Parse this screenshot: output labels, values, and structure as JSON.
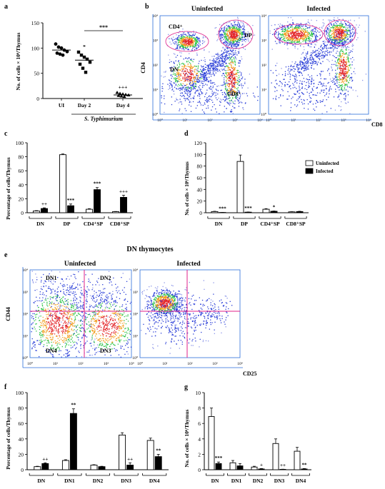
{
  "panels": {
    "a": {
      "letter": "a"
    },
    "b": {
      "letter": "b"
    },
    "c": {
      "letter": "c"
    },
    "d": {
      "letter": "d"
    },
    "e": {
      "letter": "e"
    },
    "f": {
      "letter": "f"
    },
    "g": {
      "letter": "g"
    }
  },
  "chart_data": [
    {
      "id": "a",
      "type": "scatter",
      "ylabel": "No. of cells × 10⁶/Thymus",
      "categories": [
        "UI",
        "Day 2",
        "Day 4"
      ],
      "group_label": "S. Typhimurium",
      "ylim": [
        0,
        150
      ],
      "yticks": [
        0,
        50,
        100,
        150
      ],
      "points": [
        [
          108,
          102,
          100,
          96,
          93,
          90,
          88,
          86
        ],
        [
          92,
          86,
          82,
          78,
          72,
          68,
          60,
          52
        ],
        [
          12,
          10,
          9,
          8,
          7,
          6,
          5,
          4
        ]
      ],
      "means": [
        96,
        76,
        7
      ],
      "sig_labels": [
        "",
        "*",
        "+++"
      ],
      "bracket_label": "***"
    },
    {
      "id": "b",
      "type": "density",
      "panel_titles": [
        "Uninfected",
        "Infected"
      ],
      "xlabel": "CD8",
      "ylabel": "CD4",
      "gate_labels": [
        "CD4⁺",
        "DP",
        "DN",
        "CD8⁺"
      ],
      "x_ticks": [
        "10⁰",
        "10¹",
        "10²",
        "10³",
        "10⁴"
      ],
      "y_ticks": [
        "10⁰",
        "10¹",
        "10²",
        "10³",
        "10⁴"
      ]
    },
    {
      "id": "c",
      "type": "bar",
      "ylabel": "Percentage of cells/Thymus",
      "categories": [
        "DN",
        "DP",
        "CD4⁺SP",
        "CD8⁺SP"
      ],
      "ylim": [
        0,
        100
      ],
      "yticks": [
        0,
        20,
        40,
        60,
        80,
        100
      ],
      "series": [
        {
          "values": [
            2.5,
            83,
            5,
            1.5
          ],
          "errors": [
            0.5,
            1,
            0.8,
            0.3
          ]
        },
        {
          "values": [
            6,
            10,
            33,
            22
          ],
          "errors": [
            1,
            2.5,
            3,
            3
          ]
        }
      ],
      "sig_labels": [
        "++",
        "***",
        "***",
        "+++"
      ]
    },
    {
      "id": "d",
      "type": "bar",
      "ylabel": "No. of cells × 10⁶/Thymus",
      "categories": [
        "DN",
        "DP",
        "CD4⁺SP",
        "CD8⁺SP"
      ],
      "ylim": [
        0,
        120
      ],
      "yticks": [
        0,
        20,
        40,
        60,
        80,
        100,
        120
      ],
      "series": [
        {
          "name": "Uninfected",
          "values": [
            2,
            88,
            6,
            1.5
          ],
          "errors": [
            0.5,
            11,
            1,
            0.3
          ]
        },
        {
          "name": "Infected",
          "values": [
            0.5,
            1,
            2.5,
            2
          ],
          "errors": [
            0.1,
            0.3,
            0.5,
            0.5
          ]
        }
      ],
      "sig_labels": [
        "***",
        "***",
        "*",
        ""
      ],
      "legend": "top-right"
    },
    {
      "id": "e",
      "type": "density",
      "title": "DN thymocytes",
      "panel_titles": [
        "Uninfected",
        "Infected"
      ],
      "xlabel": "CD25",
      "ylabel": "CD44",
      "quadrants": [
        "DN1",
        "DN2",
        "DN4",
        "DN3"
      ],
      "x_ticks": [
        "10⁰",
        "10¹",
        "10²",
        "10³",
        "10⁴"
      ],
      "y_ticks": [
        "10⁰",
        "10¹",
        "10²",
        "10³",
        "10⁴"
      ]
    },
    {
      "id": "f",
      "type": "bar",
      "ylabel": "Percentage of cells/Thymus",
      "categories": [
        "DN",
        "DN1",
        "DN2",
        "DN3",
        "DN4"
      ],
      "ylim": [
        0,
        100
      ],
      "yticks": [
        0,
        20,
        40,
        60,
        80,
        100
      ],
      "series": [
        {
          "values": [
            4,
            12,
            6,
            45,
            38
          ],
          "errors": [
            0.5,
            1,
            0.5,
            3,
            3
          ]
        },
        {
          "values": [
            8,
            73,
            4,
            6,
            17
          ],
          "errors": [
            1,
            6,
            0.5,
            3,
            3
          ]
        }
      ],
      "sig_labels": [
        "++",
        "**",
        "",
        "++",
        "**"
      ]
    },
    {
      "id": "g",
      "type": "bar",
      "ylabel": "No. of cells × 10⁶/Thymus",
      "categories": [
        "DN",
        "DN1",
        "DN2",
        "DN3",
        "DN4"
      ],
      "ylim": [
        0,
        10
      ],
      "yticks": [
        0,
        2,
        4,
        6,
        8,
        10
      ],
      "series": [
        {
          "values": [
            6.9,
            0.9,
            0.35,
            3.4,
            2.4
          ],
          "errors": [
            1.1,
            0.3,
            0.1,
            0.6,
            0.5
          ]
        },
        {
          "values": [
            0.8,
            0.5,
            0.1,
            0.05,
            0.1
          ],
          "errors": [
            0.2,
            0.3,
            0.05,
            0.02,
            0.05
          ]
        }
      ],
      "sig_labels": [
        "***",
        "",
        "+",
        "++",
        "**"
      ]
    }
  ]
}
